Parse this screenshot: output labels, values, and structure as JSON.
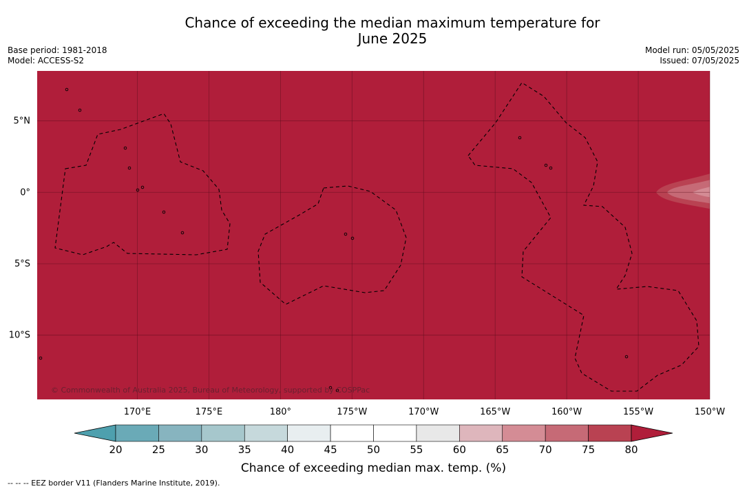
{
  "header": {
    "title_line1": "Chance of exceeding the median maximum temperature for",
    "title_line2": "June 2025",
    "base_period": "Base period: 1981-2018",
    "model": "Model: ACCESS-S2",
    "model_run": "Model run: 05/05/2025",
    "issued": "Issued: 07/05/2025"
  },
  "chart_data": {
    "type": "heatmap",
    "title": "Chance of exceeding the median maximum temperature for June 2025",
    "lon_range_degE": [
      163,
      210
    ],
    "lat_range": [
      -14.5,
      8.5
    ],
    "xticks": [
      {
        "lon": 170,
        "label": "170°E"
      },
      {
        "lon": 175,
        "label": "175°E"
      },
      {
        "lon": 180,
        "label": "180°"
      },
      {
        "lon": 185,
        "label": "175°W"
      },
      {
        "lon": 190,
        "label": "170°W"
      },
      {
        "lon": 195,
        "label": "165°W"
      },
      {
        "lon": 200,
        "label": "160°W"
      },
      {
        "lon": 205,
        "label": "155°W"
      },
      {
        "lon": 210,
        "label": "150°W"
      }
    ],
    "yticks": [
      {
        "lat": 5,
        "label": "5°N"
      },
      {
        "lat": 0,
        "label": "0°"
      },
      {
        "lat": -5,
        "label": "5°S"
      },
      {
        "lat": -10,
        "label": "10°S"
      }
    ],
    "grid": true,
    "dominant_value": ">80",
    "dominant_color": "#b01e3a",
    "anomaly_region": {
      "description_value": "65-80",
      "lon_east_edge_degE": 210,
      "lat_center": 0
    },
    "colorbar": {
      "label": "Chance of exceeding median max. temp. (%)",
      "ticks": [
        "20",
        "25",
        "30",
        "35",
        "40",
        "45",
        "50",
        "55",
        "60",
        "65",
        "70",
        "75",
        "80"
      ],
      "bin_colors": [
        "#6aaab7",
        "#87b4bf",
        "#a6c7cc",
        "#c6d9dc",
        "#e8eef0",
        "#ffffff",
        "#ffffff",
        "#e8e8e8",
        "#deb6bc",
        "#d48c95",
        "#c66a76",
        "#b94252"
      ],
      "under_color": "#4ea0ae",
      "over_color": "#b01e3a"
    },
    "attribution": "© Commonwealth of Australia 2025, Bureau of Meteorology, supported by COSPPac",
    "eez_legend": "-- -- -- EEZ border V11 (Flanders Marine Institute, 2019)."
  }
}
